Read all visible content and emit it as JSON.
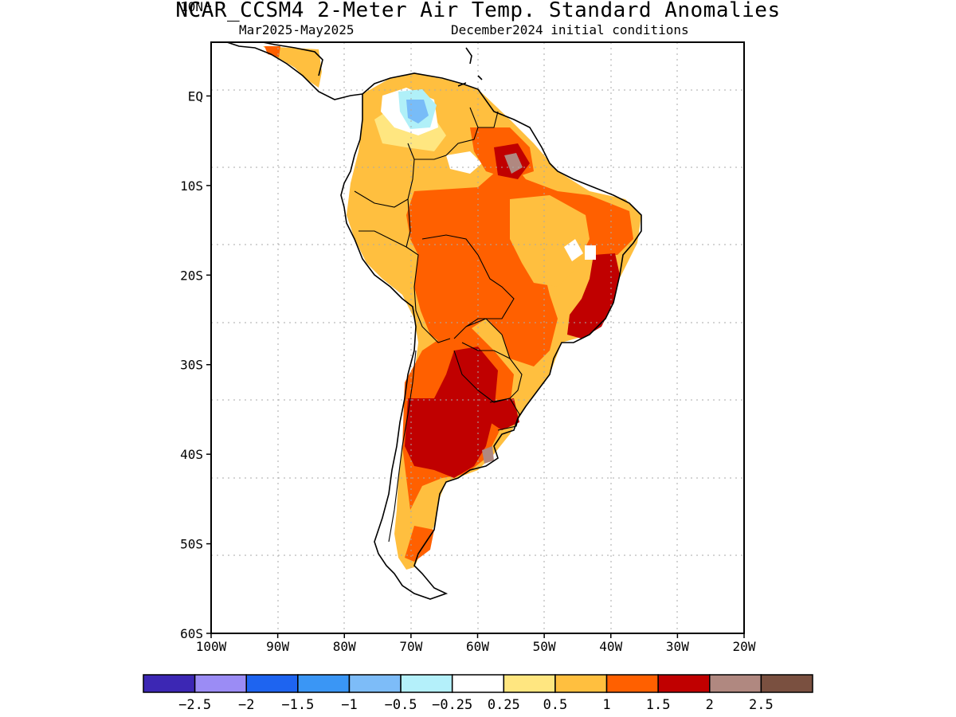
{
  "title": "NCAR_CCSM4 2-Meter Air Temp. Standard Anomalies",
  "subtitle_left": "Mar2025-May2025",
  "subtitle_right": "December2024 initial conditions",
  "map": {
    "lon_range": [
      -100,
      -20
    ],
    "lat_range": [
      -60,
      6
    ],
    "x_ticks": [
      {
        "lon": -100,
        "label": "100W"
      },
      {
        "lon": -90,
        "label": "90W"
      },
      {
        "lon": -80,
        "label": "80W"
      },
      {
        "lon": -70,
        "label": "70W"
      },
      {
        "lon": -60,
        "label": "60W"
      },
      {
        "lon": -50,
        "label": "50W"
      },
      {
        "lon": -40,
        "label": "40W"
      },
      {
        "lon": -30,
        "label": "30W"
      },
      {
        "lon": -20,
        "label": "20W"
      }
    ],
    "y_ticks": [
      {
        "lat": 10,
        "label": "10N"
      },
      {
        "lat": 0,
        "label": "EQ"
      },
      {
        "lat": -10,
        "label": "10S"
      },
      {
        "lat": -20,
        "label": "20S"
      },
      {
        "lat": -30,
        "label": "30S"
      },
      {
        "lat": -40,
        "label": "40S"
      },
      {
        "lat": -50,
        "label": "50S"
      },
      {
        "lat": -60,
        "label": "60S"
      }
    ],
    "gridlines": true,
    "colors": {
      "c025": "#ffe680",
      "c05": "#ffbf3f",
      "c1": "#ff6000",
      "c15": "#c00000",
      "c2": "#b08880",
      "cneg025": "#b0f0f8",
      "cneg05": "#78bcf8"
    }
  },
  "colorbar": {
    "colors": [
      "#3c27b4",
      "#9b8cf5",
      "#1e64f0",
      "#3a96f5",
      "#7dbcf8",
      "#b4f0fa",
      "#ffffff",
      "#ffe680",
      "#ffbf3f",
      "#ff6000",
      "#c00000",
      "#b08880",
      "#7a5040"
    ],
    "labels": [
      "-2.5",
      "-2",
      "-1.5",
      "-1",
      "-0.5",
      "-0.25",
      "0.25",
      "0.5",
      "1",
      "1.5",
      "2",
      "2.5"
    ]
  }
}
